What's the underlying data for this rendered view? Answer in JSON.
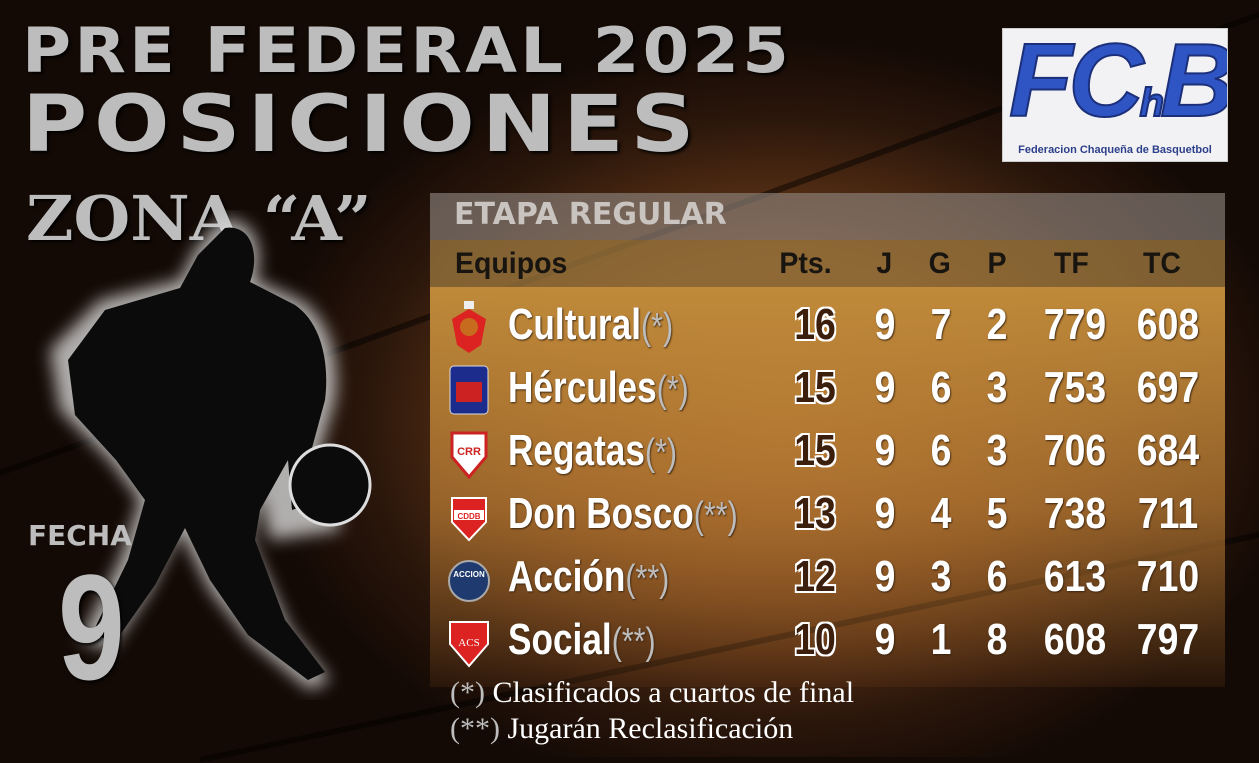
{
  "header": {
    "line1": "PRE FEDERAL 2025",
    "line2": "POSICIONES"
  },
  "logo": {
    "letters": "FChB",
    "subtitle": "Federacion Chaqueña de Basquetbol",
    "color": "#2f55c4"
  },
  "zona": "ZONA “A”",
  "fecha": {
    "label": "FECHA",
    "number": "9"
  },
  "table": {
    "stage": "ETAPA REGULAR",
    "columns": [
      "Equipos",
      "Pts.",
      "J",
      "G",
      "P",
      "TF",
      "TC"
    ],
    "rows": [
      {
        "team": "Cultural",
        "mark": "(*)",
        "pts": "16",
        "j": "9",
        "g": "7",
        "p": "2",
        "tf": "779",
        "tc": "608",
        "crest": "cultural-crest-icon"
      },
      {
        "team": "Hércules",
        "mark": "(*)",
        "pts": "15",
        "j": "9",
        "g": "6",
        "p": "3",
        "tf": "753",
        "tc": "697",
        "crest": "hercules-crest-icon"
      },
      {
        "team": "Regatas",
        "mark": "(*)",
        "pts": "15",
        "j": "9",
        "g": "6",
        "p": "3",
        "tf": "706",
        "tc": "684",
        "crest": "regatas-crest-icon"
      },
      {
        "team": "Don Bosco",
        "mark": "(**)",
        "pts": "13",
        "j": "9",
        "g": "4",
        "p": "5",
        "tf": "738",
        "tc": "711",
        "crest": "don-bosco-crest-icon"
      },
      {
        "team": "Acción",
        "mark": "(**)",
        "pts": "12",
        "j": "9",
        "g": "3",
        "p": "6",
        "tf": "613",
        "tc": "710",
        "crest": "accion-crest-icon"
      },
      {
        "team": "Social",
        "mark": "(**)",
        "pts": "10",
        "j": "9",
        "g": "1",
        "p": "8",
        "tf": "608",
        "tc": "797",
        "crest": "social-crest-icon"
      }
    ],
    "crest_texts": {
      "regatas": "CRR",
      "don_bosco": "CDDB",
      "social": "ACS",
      "accion": "ACCION"
    }
  },
  "notes": [
    {
      "mark": "(*)",
      "text": " Clasificados a cuartos de final"
    },
    {
      "mark": "(**)",
      "text": " Jugarán Reclasificación"
    }
  ]
}
